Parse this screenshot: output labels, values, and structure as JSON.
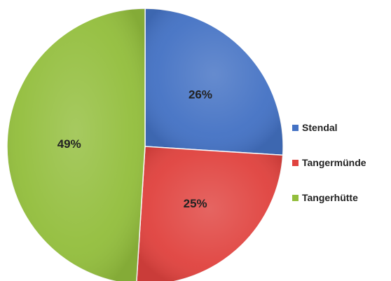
{
  "chart_data": {
    "type": "pie",
    "categories": [
      "Stendal",
      "Tangermünde",
      "Tangerhütte"
    ],
    "values": [
      26,
      25,
      49
    ],
    "data_labels": [
      "26%",
      "25%",
      "49%"
    ],
    "colors": [
      "#4472c4",
      "#e0433f",
      "#93be3d"
    ],
    "start_angle_deg": 0,
    "direction": "clockwise",
    "legend_position": "right",
    "title": ""
  },
  "legend": {
    "items": [
      {
        "label": "Stendal",
        "color": "#4472c4"
      },
      {
        "label": "Tangermünde",
        "color": "#e0433f"
      },
      {
        "label": "Tangerhütte",
        "color": "#93be3d"
      }
    ]
  }
}
